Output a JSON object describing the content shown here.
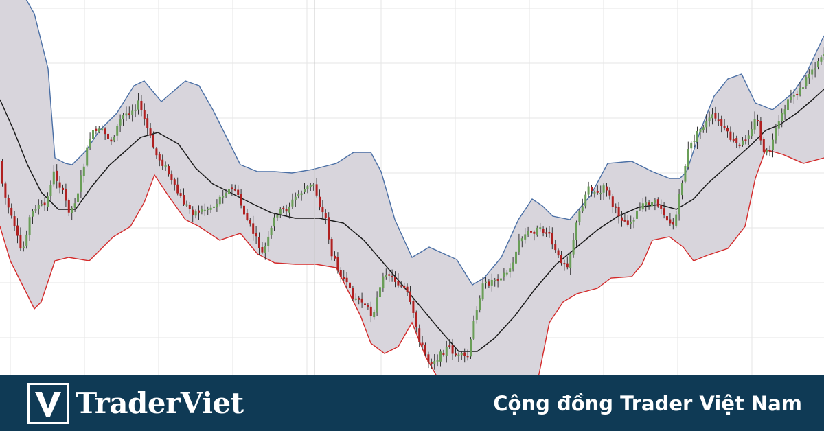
{
  "chart_data": {
    "type": "candlestick",
    "indicator": "bollinger-bands",
    "grid": true,
    "axes_labels_visible": false,
    "ylim": [
      0,
      547
    ],
    "colors": {
      "band_fill": "#d8d5dc",
      "upper_band": "#4a6fa5",
      "lower_band": "#d42a2a",
      "middle_band": "#1a1a1a",
      "candle_up": "#6a9e58",
      "candle_down": "#b02020",
      "grid": "#e6e6e6",
      "vertical_marker": "#c8c8c8"
    },
    "upper_band": [
      [
        0,
        -40
      ],
      [
        30,
        -15
      ],
      [
        50,
        20
      ],
      [
        70,
        100
      ],
      [
        80,
        230
      ],
      [
        95,
        238
      ],
      [
        105,
        240
      ],
      [
        125,
        220
      ],
      [
        145,
        190
      ],
      [
        170,
        165
      ],
      [
        195,
        125
      ],
      [
        210,
        118
      ],
      [
        235,
        148
      ],
      [
        250,
        135
      ],
      [
        270,
        118
      ],
      [
        290,
        125
      ],
      [
        310,
        160
      ],
      [
        330,
        200
      ],
      [
        350,
        240
      ],
      [
        375,
        250
      ],
      [
        400,
        250
      ],
      [
        425,
        252
      ],
      [
        455,
        247
      ],
      [
        490,
        238
      ],
      [
        515,
        222
      ],
      [
        540,
        222
      ],
      [
        555,
        250
      ],
      [
        575,
        320
      ],
      [
        600,
        375
      ],
      [
        625,
        360
      ],
      [
        665,
        378
      ],
      [
        688,
        415
      ],
      [
        705,
        405
      ],
      [
        730,
        375
      ],
      [
        755,
        320
      ],
      [
        775,
        290
      ],
      [
        790,
        300
      ],
      [
        805,
        315
      ],
      [
        830,
        320
      ],
      [
        860,
        285
      ],
      [
        885,
        238
      ],
      [
        920,
        235
      ],
      [
        950,
        250
      ],
      [
        975,
        260
      ],
      [
        990,
        260
      ],
      [
        1000,
        250
      ],
      [
        1020,
        190
      ],
      [
        1040,
        140
      ],
      [
        1060,
        115
      ],
      [
        1080,
        108
      ],
      [
        1100,
        150
      ],
      [
        1125,
        160
      ],
      [
        1155,
        135
      ],
      [
        1175,
        105
      ],
      [
        1200,
        52
      ]
    ],
    "lower_band": [
      [
        0,
        330
      ],
      [
        15,
        380
      ],
      [
        30,
        410
      ],
      [
        50,
        450
      ],
      [
        60,
        440
      ],
      [
        70,
        410
      ],
      [
        80,
        380
      ],
      [
        100,
        375
      ],
      [
        130,
        380
      ],
      [
        145,
        365
      ],
      [
        165,
        345
      ],
      [
        190,
        330
      ],
      [
        210,
        295
      ],
      [
        225,
        255
      ],
      [
        245,
        285
      ],
      [
        270,
        320
      ],
      [
        290,
        330
      ],
      [
        320,
        350
      ],
      [
        350,
        340
      ],
      [
        375,
        370
      ],
      [
        400,
        383
      ],
      [
        430,
        385
      ],
      [
        460,
        385
      ],
      [
        490,
        390
      ],
      [
        510,
        430
      ],
      [
        525,
        460
      ],
      [
        540,
        500
      ],
      [
        560,
        515
      ],
      [
        580,
        505
      ],
      [
        600,
        470
      ],
      [
        620,
        520
      ],
      [
        640,
        555
      ],
      [
        665,
        560
      ],
      [
        690,
        580
      ],
      [
        740,
        585
      ],
      [
        770,
        580
      ],
      [
        785,
        545
      ],
      [
        800,
        470
      ],
      [
        820,
        440
      ],
      [
        840,
        428
      ],
      [
        870,
        420
      ],
      [
        890,
        405
      ],
      [
        920,
        403
      ],
      [
        935,
        385
      ],
      [
        950,
        350
      ],
      [
        975,
        345
      ],
      [
        995,
        360
      ],
      [
        1010,
        380
      ],
      [
        1030,
        372
      ],
      [
        1060,
        362
      ],
      [
        1085,
        330
      ],
      [
        1100,
        260
      ],
      [
        1115,
        218
      ],
      [
        1140,
        225
      ],
      [
        1170,
        238
      ],
      [
        1200,
        230
      ]
    ],
    "middle_band": [
      [
        0,
        145
      ],
      [
        20,
        190
      ],
      [
        40,
        240
      ],
      [
        60,
        280
      ],
      [
        85,
        305
      ],
      [
        110,
        305
      ],
      [
        135,
        270
      ],
      [
        160,
        240
      ],
      [
        185,
        218
      ],
      [
        205,
        200
      ],
      [
        230,
        193
      ],
      [
        260,
        210
      ],
      [
        285,
        245
      ],
      [
        310,
        268
      ],
      [
        340,
        283
      ],
      [
        370,
        298
      ],
      [
        395,
        310
      ],
      [
        430,
        318
      ],
      [
        465,
        318
      ],
      [
        500,
        325
      ],
      [
        530,
        350
      ],
      [
        560,
        385
      ],
      [
        590,
        420
      ],
      [
        615,
        450
      ],
      [
        640,
        480
      ],
      [
        668,
        512
      ],
      [
        695,
        512
      ],
      [
        720,
        493
      ],
      [
        750,
        460
      ],
      [
        780,
        420
      ],
      [
        810,
        385
      ],
      [
        840,
        360
      ],
      [
        870,
        335
      ],
      [
        900,
        315
      ],
      [
        930,
        302
      ],
      [
        960,
        298
      ],
      [
        985,
        305
      ],
      [
        1010,
        290
      ],
      [
        1030,
        268
      ],
      [
        1050,
        250
      ],
      [
        1075,
        228
      ],
      [
        1095,
        210
      ],
      [
        1115,
        190
      ],
      [
        1135,
        182
      ],
      [
        1160,
        165
      ],
      [
        1180,
        148
      ],
      [
        1200,
        130
      ]
    ],
    "price_path": [
      [
        0,
        235
      ],
      [
        10,
        285
      ],
      [
        20,
        320
      ],
      [
        35,
        370
      ],
      [
        45,
        320
      ],
      [
        55,
        300
      ],
      [
        70,
        300
      ],
      [
        80,
        250
      ],
      [
        90,
        270
      ],
      [
        105,
        310
      ],
      [
        115,
        285
      ],
      [
        125,
        240
      ],
      [
        135,
        195
      ],
      [
        150,
        190
      ],
      [
        165,
        205
      ],
      [
        180,
        170
      ],
      [
        195,
        160
      ],
      [
        205,
        150
      ],
      [
        215,
        180
      ],
      [
        230,
        225
      ],
      [
        245,
        245
      ],
      [
        255,
        270
      ],
      [
        270,
        295
      ],
      [
        285,
        310
      ],
      [
        300,
        305
      ],
      [
        315,
        300
      ],
      [
        330,
        278
      ],
      [
        345,
        275
      ],
      [
        358,
        310
      ],
      [
        372,
        340
      ],
      [
        385,
        370
      ],
      [
        395,
        345
      ],
      [
        405,
        310
      ],
      [
        420,
        305
      ],
      [
        435,
        285
      ],
      [
        448,
        275
      ],
      [
        460,
        268
      ],
      [
        470,
        305
      ],
      [
        478,
        320
      ],
      [
        485,
        370
      ],
      [
        500,
        400
      ],
      [
        515,
        430
      ],
      [
        530,
        440
      ],
      [
        545,
        460
      ],
      [
        555,
        425
      ],
      [
        565,
        395
      ],
      [
        580,
        410
      ],
      [
        595,
        425
      ],
      [
        605,
        460
      ],
      [
        615,
        500
      ],
      [
        628,
        528
      ],
      [
        642,
        520
      ],
      [
        655,
        505
      ],
      [
        670,
        520
      ],
      [
        685,
        520
      ],
      [
        695,
        455
      ],
      [
        705,
        418
      ],
      [
        725,
        405
      ],
      [
        745,
        395
      ],
      [
        760,
        350
      ],
      [
        770,
        340
      ],
      [
        785,
        335
      ],
      [
        800,
        338
      ],
      [
        815,
        375
      ],
      [
        830,
        385
      ],
      [
        845,
        315
      ],
      [
        860,
        270
      ],
      [
        875,
        285
      ],
      [
        885,
        270
      ],
      [
        895,
        300
      ],
      [
        910,
        320
      ],
      [
        920,
        325
      ],
      [
        930,
        310
      ],
      [
        945,
        295
      ],
      [
        955,
        295
      ],
      [
        965,
        300
      ],
      [
        975,
        320
      ],
      [
        985,
        328
      ],
      [
        995,
        270
      ],
      [
        1005,
        220
      ],
      [
        1015,
        200
      ],
      [
        1025,
        185
      ],
      [
        1040,
        170
      ],
      [
        1050,
        178
      ],
      [
        1065,
        200
      ],
      [
        1080,
        215
      ],
      [
        1095,
        190
      ],
      [
        1105,
        170
      ],
      [
        1115,
        225
      ],
      [
        1125,
        218
      ],
      [
        1135,
        185
      ],
      [
        1145,
        160
      ],
      [
        1155,
        140
      ],
      [
        1170,
        130
      ],
      [
        1180,
        108
      ],
      [
        1190,
        95
      ],
      [
        1200,
        78
      ]
    ]
  },
  "footer": {
    "brand": "TraderViet",
    "tagline": "Cộng đồng Trader Việt Nam",
    "background": "#0f3a55"
  }
}
